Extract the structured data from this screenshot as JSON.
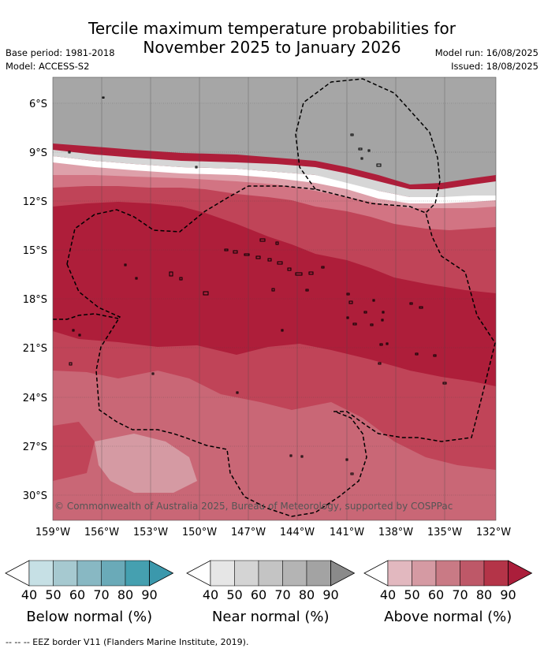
{
  "title": {
    "line1": "Tercile maximum temperature probabilities for",
    "line2": "November 2025 to January 2026"
  },
  "meta": {
    "base_period": "Base period: 1981-2018",
    "model": "Model: ACCESS-S2",
    "model_run": "Model run: 16/08/2025",
    "issued": "Issued: 18/08/2025"
  },
  "map": {
    "lat_labels": [
      "6°S",
      "9°S",
      "12°S",
      "15°S",
      "18°S",
      "21°S",
      "24°S",
      "27°S",
      "30°S"
    ],
    "lon_labels": [
      "159°W",
      "156°W",
      "153°W",
      "150°W",
      "147°W",
      "144°W",
      "141°W",
      "138°W",
      "135°W",
      "132°W"
    ],
    "copyright": "© Commonwealth of Australia 2025, Bureau of Meteorology, supported by COSPPac"
  },
  "colorbars": [
    {
      "name": "below",
      "title": "Below normal (%)",
      "ticks": [
        "40",
        "50",
        "60",
        "70",
        "80",
        "90"
      ],
      "colors": [
        "#ffffff",
        "#c6e0e5",
        "#a6c9d0",
        "#88b8c3",
        "#6aaab8",
        "#45a0b0",
        "#3b98ac"
      ]
    },
    {
      "name": "near",
      "title": "Near normal (%)",
      "ticks": [
        "40",
        "50",
        "60",
        "70",
        "80",
        "90"
      ],
      "colors": [
        "#ffffff",
        "#e6e6e6",
        "#d4d4d4",
        "#c4c4c4",
        "#b4b4b4",
        "#a3a3a3",
        "#8a8a8a"
      ]
    },
    {
      "name": "above",
      "title": "Above normal (%)",
      "ticks": [
        "40",
        "50",
        "60",
        "70",
        "80",
        "90"
      ],
      "colors": [
        "#ffffff",
        "#e2b8bf",
        "#d59aa3",
        "#c97a85",
        "#be5868",
        "#b43448",
        "#ab1e3b"
      ]
    }
  ],
  "footnote": "-- -- -- EEZ border V11 (Flanders Marine Institute, 2019)."
}
